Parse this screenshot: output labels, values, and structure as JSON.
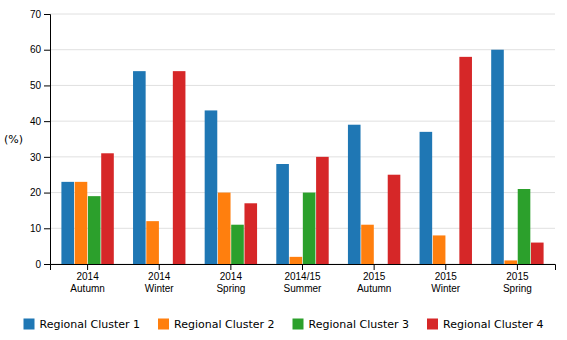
{
  "chart_data": {
    "type": "bar",
    "categories": [
      "2014\nAutumn",
      "2014\nWinter",
      "2014\nSpring",
      "2014/15\nSummer",
      "2015\nAutumn",
      "2015\nWinter",
      "2015\nSpring"
    ],
    "series": [
      {
        "name": "Regional Cluster 1",
        "values": [
          23,
          54,
          43,
          28,
          39,
          37,
          60
        ]
      },
      {
        "name": "Regional Cluster 2",
        "values": [
          23,
          12,
          20,
          2,
          11,
          8,
          1
        ]
      },
      {
        "name": "Regional Cluster 3",
        "values": [
          19,
          0,
          11,
          20,
          0,
          0,
          21
        ]
      },
      {
        "name": "Regional Cluster 4",
        "values": [
          31,
          54,
          17,
          30,
          25,
          58,
          6
        ]
      }
    ],
    "ylabel": "(%)",
    "ylim": [
      0,
      70
    ],
    "yticks": [
      0,
      10,
      20,
      30,
      40,
      50,
      60,
      70
    ],
    "grid": true,
    "legend": "bottom"
  }
}
